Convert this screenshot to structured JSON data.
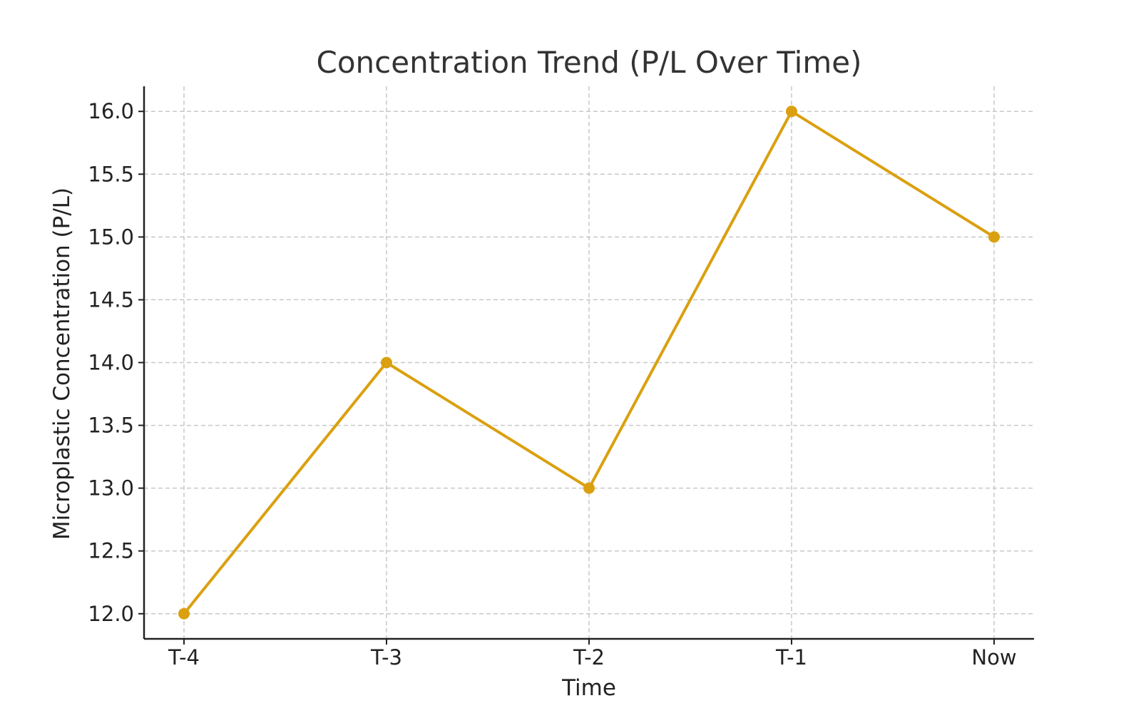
{
  "chart_data": {
    "type": "line",
    "title": "Concentration Trend (P/L Over Time)",
    "xlabel": "Time",
    "ylabel": "Microplastic Concentration (P/L)",
    "categories": [
      "T-4",
      "T-3",
      "T-2",
      "T-1",
      "Now"
    ],
    "series": [
      {
        "values": [
          12.0,
          14.0,
          13.0,
          16.0,
          15.0
        ],
        "color": "#DAA010",
        "marker": "circle"
      }
    ],
    "ylim": [
      11.8,
      16.2
    ],
    "yticks": [
      "12.0",
      "12.5",
      "13.0",
      "13.5",
      "14.0",
      "14.5",
      "15.0",
      "15.5",
      "16.0"
    ],
    "grid": true,
    "legend": "none"
  }
}
